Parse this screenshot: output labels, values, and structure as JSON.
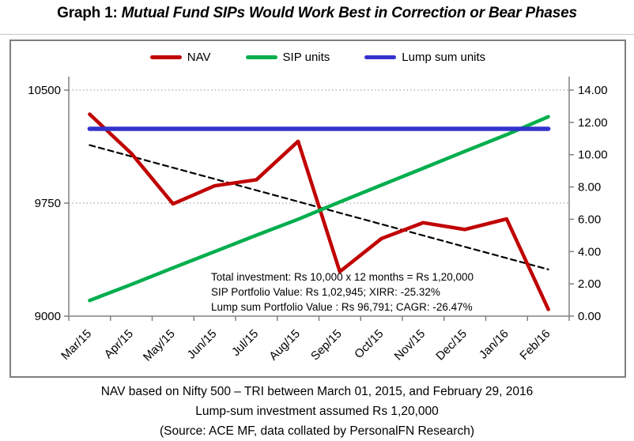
{
  "title": {
    "prefix": "Graph 1:",
    "text": "Mutual Fund SIPs Would Work Best in Correction or Bear Phases"
  },
  "chart_data": {
    "type": "line",
    "categories": [
      "Mar/15",
      "Apr/15",
      "May/15",
      "Jun/15",
      "Jul/15",
      "Aug/15",
      "Sep/15",
      "Oct/15",
      "Nov/15",
      "Dec/15",
      "Jan/16",
      "Feb/16"
    ],
    "series": [
      {
        "name": "NAV linear trendline",
        "axis": "left",
        "color": "#000000",
        "width": 2.2,
        "dash": "7 5",
        "legend": false,
        "values": [
          10135,
          10060,
          9985,
          9910,
          9835,
          9760,
          9685,
          9610,
          9535,
          9460,
          9385,
          9310
        ]
      },
      {
        "name": "NAV",
        "axis": "left",
        "color": "#C00000",
        "width": 4.5,
        "dash": null,
        "legend": true,
        "values": [
          10340,
          10080,
          9745,
          9865,
          9905,
          10160,
          9295,
          9515,
          9620,
          9575,
          9645,
          9045
        ]
      },
      {
        "name": "SIP units",
        "axis": "right",
        "color": "#00AE4D",
        "width": 4.5,
        "dash": null,
        "legend": true,
        "values": [
          0.97,
          1.96,
          2.99,
          4.0,
          5.01,
          6.0,
          7.07,
          8.12,
          9.16,
          10.21,
          11.24,
          12.35
        ]
      },
      {
        "name": "Lump sum units",
        "axis": "right",
        "color": "#3333CC",
        "width": 5.5,
        "dash": null,
        "legend": true,
        "values": [
          11.6,
          11.6,
          11.6,
          11.6,
          11.6,
          11.6,
          11.6,
          11.6,
          11.6,
          11.6,
          11.6,
          11.6
        ]
      }
    ],
    "left_axis": {
      "min": 9000,
      "max": 10500,
      "ticks": [
        "10500",
        "9750",
        "9000"
      ],
      "gridlines": [
        10500,
        9750
      ]
    },
    "right_axis": {
      "min": 0,
      "max": 14,
      "ticks": [
        "14.00",
        "12.00",
        "10.00",
        "8.00",
        "6.00",
        "4.00",
        "2.00",
        "0.00"
      ]
    },
    "legend_position": "top",
    "grid": "dotted horizontal at 10500 and 9750",
    "annotation": [
      "Total investment: Rs 10,000 x 12 months = Rs 1,20,000",
      "SIP Portfolio Value: Rs 1,02,945; XIRR: -25.32%",
      "Lump sum Portfolio Value : Rs 96,791; CAGR: -26.47%"
    ]
  },
  "footer": {
    "line1": "NAV based on Nifty 500 – TRI between March 01, 2015, and February 29, 2016",
    "line2": "Lump-sum investment assumed Rs 1,20,000",
    "line3": "(Source: ACE MF, data collated by PersonalFN Research)"
  },
  "colors": {
    "nav": "#C00000",
    "sip_units": "#00AE4D",
    "lump_sum": "#3333CC",
    "axis_gray": "#808080",
    "gridline_gray": "#A6A6A6"
  }
}
